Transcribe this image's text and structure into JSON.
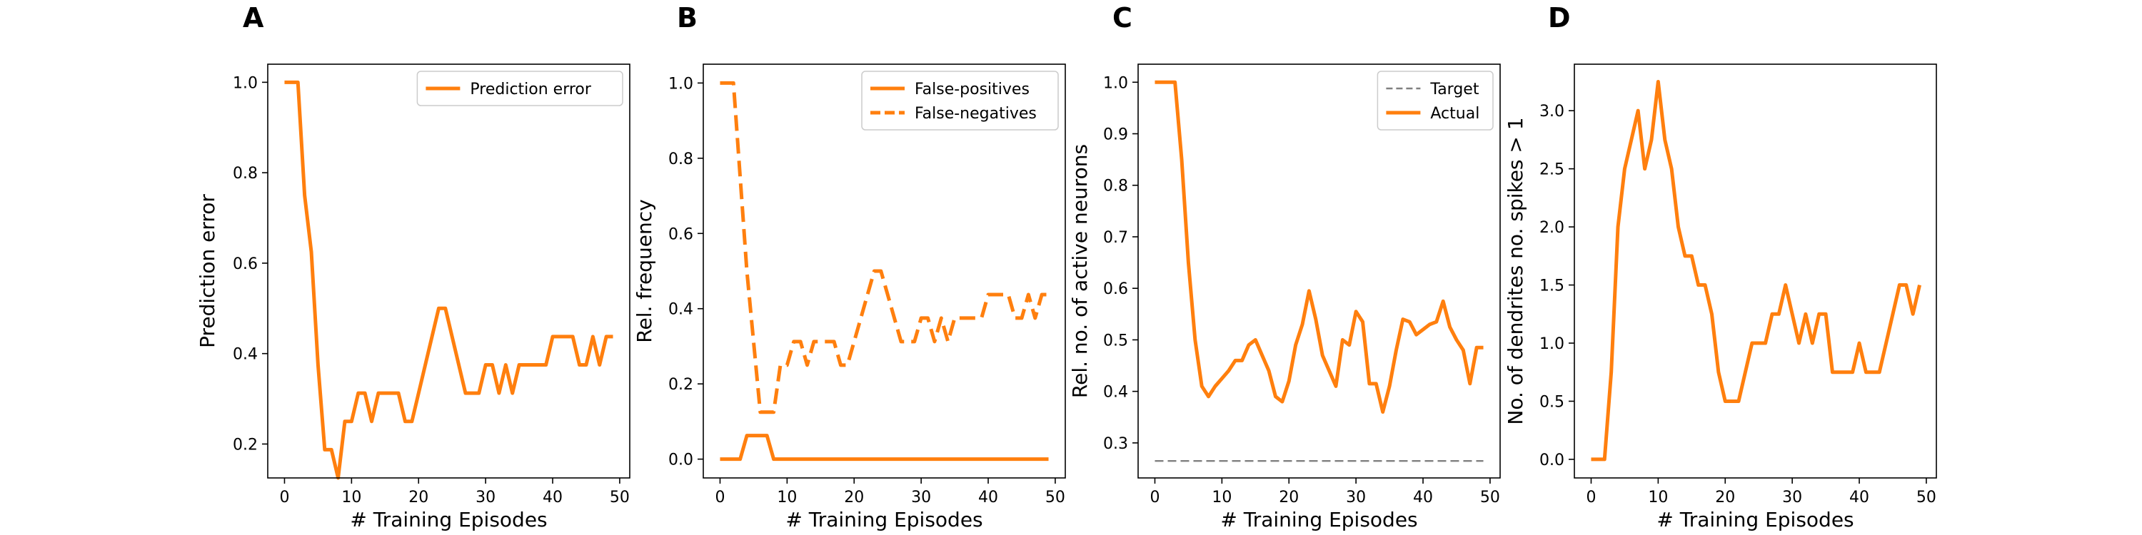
{
  "chart_data": [
    {
      "panel": "A",
      "type": "line",
      "xlabel": "# Training Episodes",
      "ylabel": "Prediction error",
      "xlim": [
        -2.5,
        51.5
      ],
      "ylim": [
        0.125,
        1.04
      ],
      "xticks": [
        0,
        10,
        20,
        30,
        40,
        50
      ],
      "yticks": [
        0.2,
        0.4,
        0.6,
        0.8,
        1.0
      ],
      "ytick_format": 1,
      "legend_position": "top-right",
      "series": [
        {
          "name": "Prediction error",
          "color": "#ff7f0e",
          "dash": "solid",
          "legend": true,
          "x": [
            0,
            1,
            2,
            3,
            4,
            5,
            6,
            7,
            8,
            9,
            10,
            11,
            12,
            13,
            14,
            15,
            16,
            17,
            18,
            19,
            20,
            21,
            22,
            23,
            24,
            25,
            26,
            27,
            28,
            29,
            30,
            31,
            32,
            33,
            34,
            35,
            36,
            37,
            38,
            39,
            40,
            41,
            42,
            43,
            44,
            45,
            46,
            47,
            48,
            49
          ],
          "y": [
            1.0,
            1.0,
            1.0,
            0.75,
            0.625,
            0.375,
            0.1875,
            0.1875,
            0.125,
            0.25,
            0.25,
            0.3125,
            0.3125,
            0.25,
            0.3125,
            0.3125,
            0.3125,
            0.3125,
            0.25,
            0.25,
            0.3125,
            0.375,
            0.4375,
            0.5,
            0.5,
            0.4375,
            0.375,
            0.3125,
            0.3125,
            0.3125,
            0.375,
            0.375,
            0.3125,
            0.375,
            0.3125,
            0.375,
            0.375,
            0.375,
            0.375,
            0.375,
            0.4375,
            0.4375,
            0.4375,
            0.4375,
            0.375,
            0.375,
            0.4375,
            0.375,
            0.4375,
            0.4375
          ]
        }
      ]
    },
    {
      "panel": "B",
      "type": "line",
      "xlabel": "# Training Episodes",
      "ylabel": "Rel. frequency",
      "xlim": [
        -2.5,
        51.5
      ],
      "ylim": [
        -0.05,
        1.05
      ],
      "xticks": [
        0,
        10,
        20,
        30,
        40,
        50
      ],
      "yticks": [
        0.0,
        0.2,
        0.4,
        0.6,
        0.8,
        1.0
      ],
      "ytick_format": 1,
      "legend_position": "top-right",
      "series": [
        {
          "name": "False-positives",
          "color": "#ff7f0e",
          "dash": "solid",
          "legend": true,
          "x": [
            0,
            1,
            2,
            3,
            4,
            5,
            6,
            7,
            8,
            9,
            10,
            11,
            12,
            13,
            14,
            15,
            16,
            17,
            18,
            19,
            20,
            21,
            22,
            23,
            24,
            25,
            26,
            27,
            28,
            29,
            30,
            31,
            32,
            33,
            34,
            35,
            36,
            37,
            38,
            39,
            40,
            41,
            42,
            43,
            44,
            45,
            46,
            47,
            48,
            49
          ],
          "y": [
            0,
            0,
            0,
            0,
            0.0625,
            0.0625,
            0.0625,
            0.0625,
            0,
            0,
            0,
            0,
            0,
            0,
            0,
            0,
            0,
            0,
            0,
            0,
            0,
            0,
            0,
            0,
            0,
            0,
            0,
            0,
            0,
            0,
            0,
            0,
            0,
            0,
            0,
            0,
            0,
            0,
            0,
            0,
            0,
            0,
            0,
            0,
            0,
            0,
            0,
            0,
            0,
            0
          ]
        },
        {
          "name": "False-negatives",
          "color": "#ff7f0e",
          "dash": "dashed",
          "legend": true,
          "x": [
            0,
            1,
            2,
            3,
            4,
            5,
            6,
            7,
            8,
            9,
            10,
            11,
            12,
            13,
            14,
            15,
            16,
            17,
            18,
            19,
            20,
            21,
            22,
            23,
            24,
            25,
            26,
            27,
            28,
            29,
            30,
            31,
            32,
            33,
            34,
            35,
            36,
            37,
            38,
            39,
            40,
            41,
            42,
            43,
            44,
            45,
            46,
            47,
            48,
            49
          ],
          "y": [
            1.0,
            1.0,
            1.0,
            0.75,
            0.5,
            0.3125,
            0.125,
            0.125,
            0.125,
            0.25,
            0.25,
            0.3125,
            0.3125,
            0.25,
            0.3125,
            0.3125,
            0.3125,
            0.3125,
            0.25,
            0.25,
            0.3125,
            0.375,
            0.4375,
            0.5,
            0.5,
            0.4375,
            0.375,
            0.3125,
            0.3125,
            0.3125,
            0.375,
            0.375,
            0.3125,
            0.375,
            0.3125,
            0.375,
            0.375,
            0.375,
            0.375,
            0.375,
            0.4375,
            0.4375,
            0.4375,
            0.4375,
            0.375,
            0.375,
            0.4375,
            0.375,
            0.4375,
            0.4375
          ]
        }
      ]
    },
    {
      "panel": "C",
      "type": "line",
      "xlabel": "# Training Episodes",
      "ylabel": "Rel. no. of active neurons",
      "xlim": [
        -2.5,
        51.5
      ],
      "ylim": [
        0.232,
        1.035
      ],
      "xticks": [
        0,
        10,
        20,
        30,
        40,
        50
      ],
      "yticks": [
        0.3,
        0.4,
        0.5,
        0.6,
        0.7,
        0.8,
        0.9,
        1.0
      ],
      "ytick_format": 1,
      "legend_position": "top-right",
      "series": [
        {
          "name": "Target",
          "color": "#808080",
          "dash": "dashed-thin",
          "legend": true,
          "x": [
            0,
            49
          ],
          "y": [
            0.265,
            0.265
          ]
        },
        {
          "name": "Actual",
          "color": "#ff7f0e",
          "dash": "solid",
          "legend": true,
          "x": [
            0,
            1,
            2,
            3,
            4,
            5,
            6,
            7,
            8,
            9,
            10,
            11,
            12,
            13,
            14,
            15,
            16,
            17,
            18,
            19,
            20,
            21,
            22,
            23,
            24,
            25,
            26,
            27,
            28,
            29,
            30,
            31,
            32,
            33,
            34,
            35,
            36,
            37,
            38,
            39,
            40,
            41,
            42,
            43,
            44,
            45,
            46,
            47,
            48,
            49
          ],
          "y": [
            1.0,
            1.0,
            1.0,
            1.0,
            0.85,
            0.65,
            0.5,
            0.41,
            0.39,
            0.41,
            0.425,
            0.44,
            0.46,
            0.46,
            0.49,
            0.5,
            0.47,
            0.44,
            0.39,
            0.38,
            0.42,
            0.49,
            0.53,
            0.595,
            0.54,
            0.47,
            0.44,
            0.41,
            0.5,
            0.49,
            0.555,
            0.535,
            0.415,
            0.415,
            0.36,
            0.41,
            0.48,
            0.54,
            0.535,
            0.51,
            0.52,
            0.53,
            0.535,
            0.575,
            0.525,
            0.5,
            0.48,
            0.415,
            0.485,
            0.485
          ]
        }
      ]
    },
    {
      "panel": "D",
      "type": "line",
      "xlabel": "# Training Episodes",
      "ylabel": "No. of dendrites no. spikes > 1",
      "xlim": [
        -2.5,
        51.5
      ],
      "ylim": [
        -0.16,
        3.4
      ],
      "xticks": [
        0,
        10,
        20,
        30,
        40,
        50
      ],
      "yticks": [
        0.0,
        0.5,
        1.0,
        1.5,
        2.0,
        2.5,
        3.0
      ],
      "ytick_format": 1,
      "legend_position": "none",
      "series": [
        {
          "name": "",
          "color": "#ff7f0e",
          "dash": "solid",
          "legend": false,
          "x": [
            0,
            1,
            2,
            3,
            4,
            5,
            6,
            7,
            8,
            9,
            10,
            11,
            12,
            13,
            14,
            15,
            16,
            17,
            18,
            19,
            20,
            21,
            22,
            23,
            24,
            25,
            26,
            27,
            28,
            29,
            30,
            31,
            32,
            33,
            34,
            35,
            36,
            37,
            38,
            39,
            40,
            41,
            42,
            43,
            44,
            45,
            46,
            47,
            48,
            49
          ],
          "y": [
            0,
            0,
            0,
            0.75,
            2.0,
            2.5,
            2.75,
            3.0,
            2.5,
            2.75,
            3.25,
            2.75,
            2.5,
            2.0,
            1.75,
            1.75,
            1.5,
            1.5,
            1.25,
            0.75,
            0.5,
            0.5,
            0.5,
            0.75,
            1.0,
            1.0,
            1.0,
            1.25,
            1.25,
            1.5,
            1.25,
            1.0,
            1.25,
            1.0,
            1.25,
            1.25,
            0.75,
            0.75,
            0.75,
            0.75,
            1.0,
            0.75,
            0.75,
            0.75,
            1.0,
            1.25,
            1.5,
            1.5,
            1.25,
            1.5
          ]
        }
      ]
    }
  ]
}
